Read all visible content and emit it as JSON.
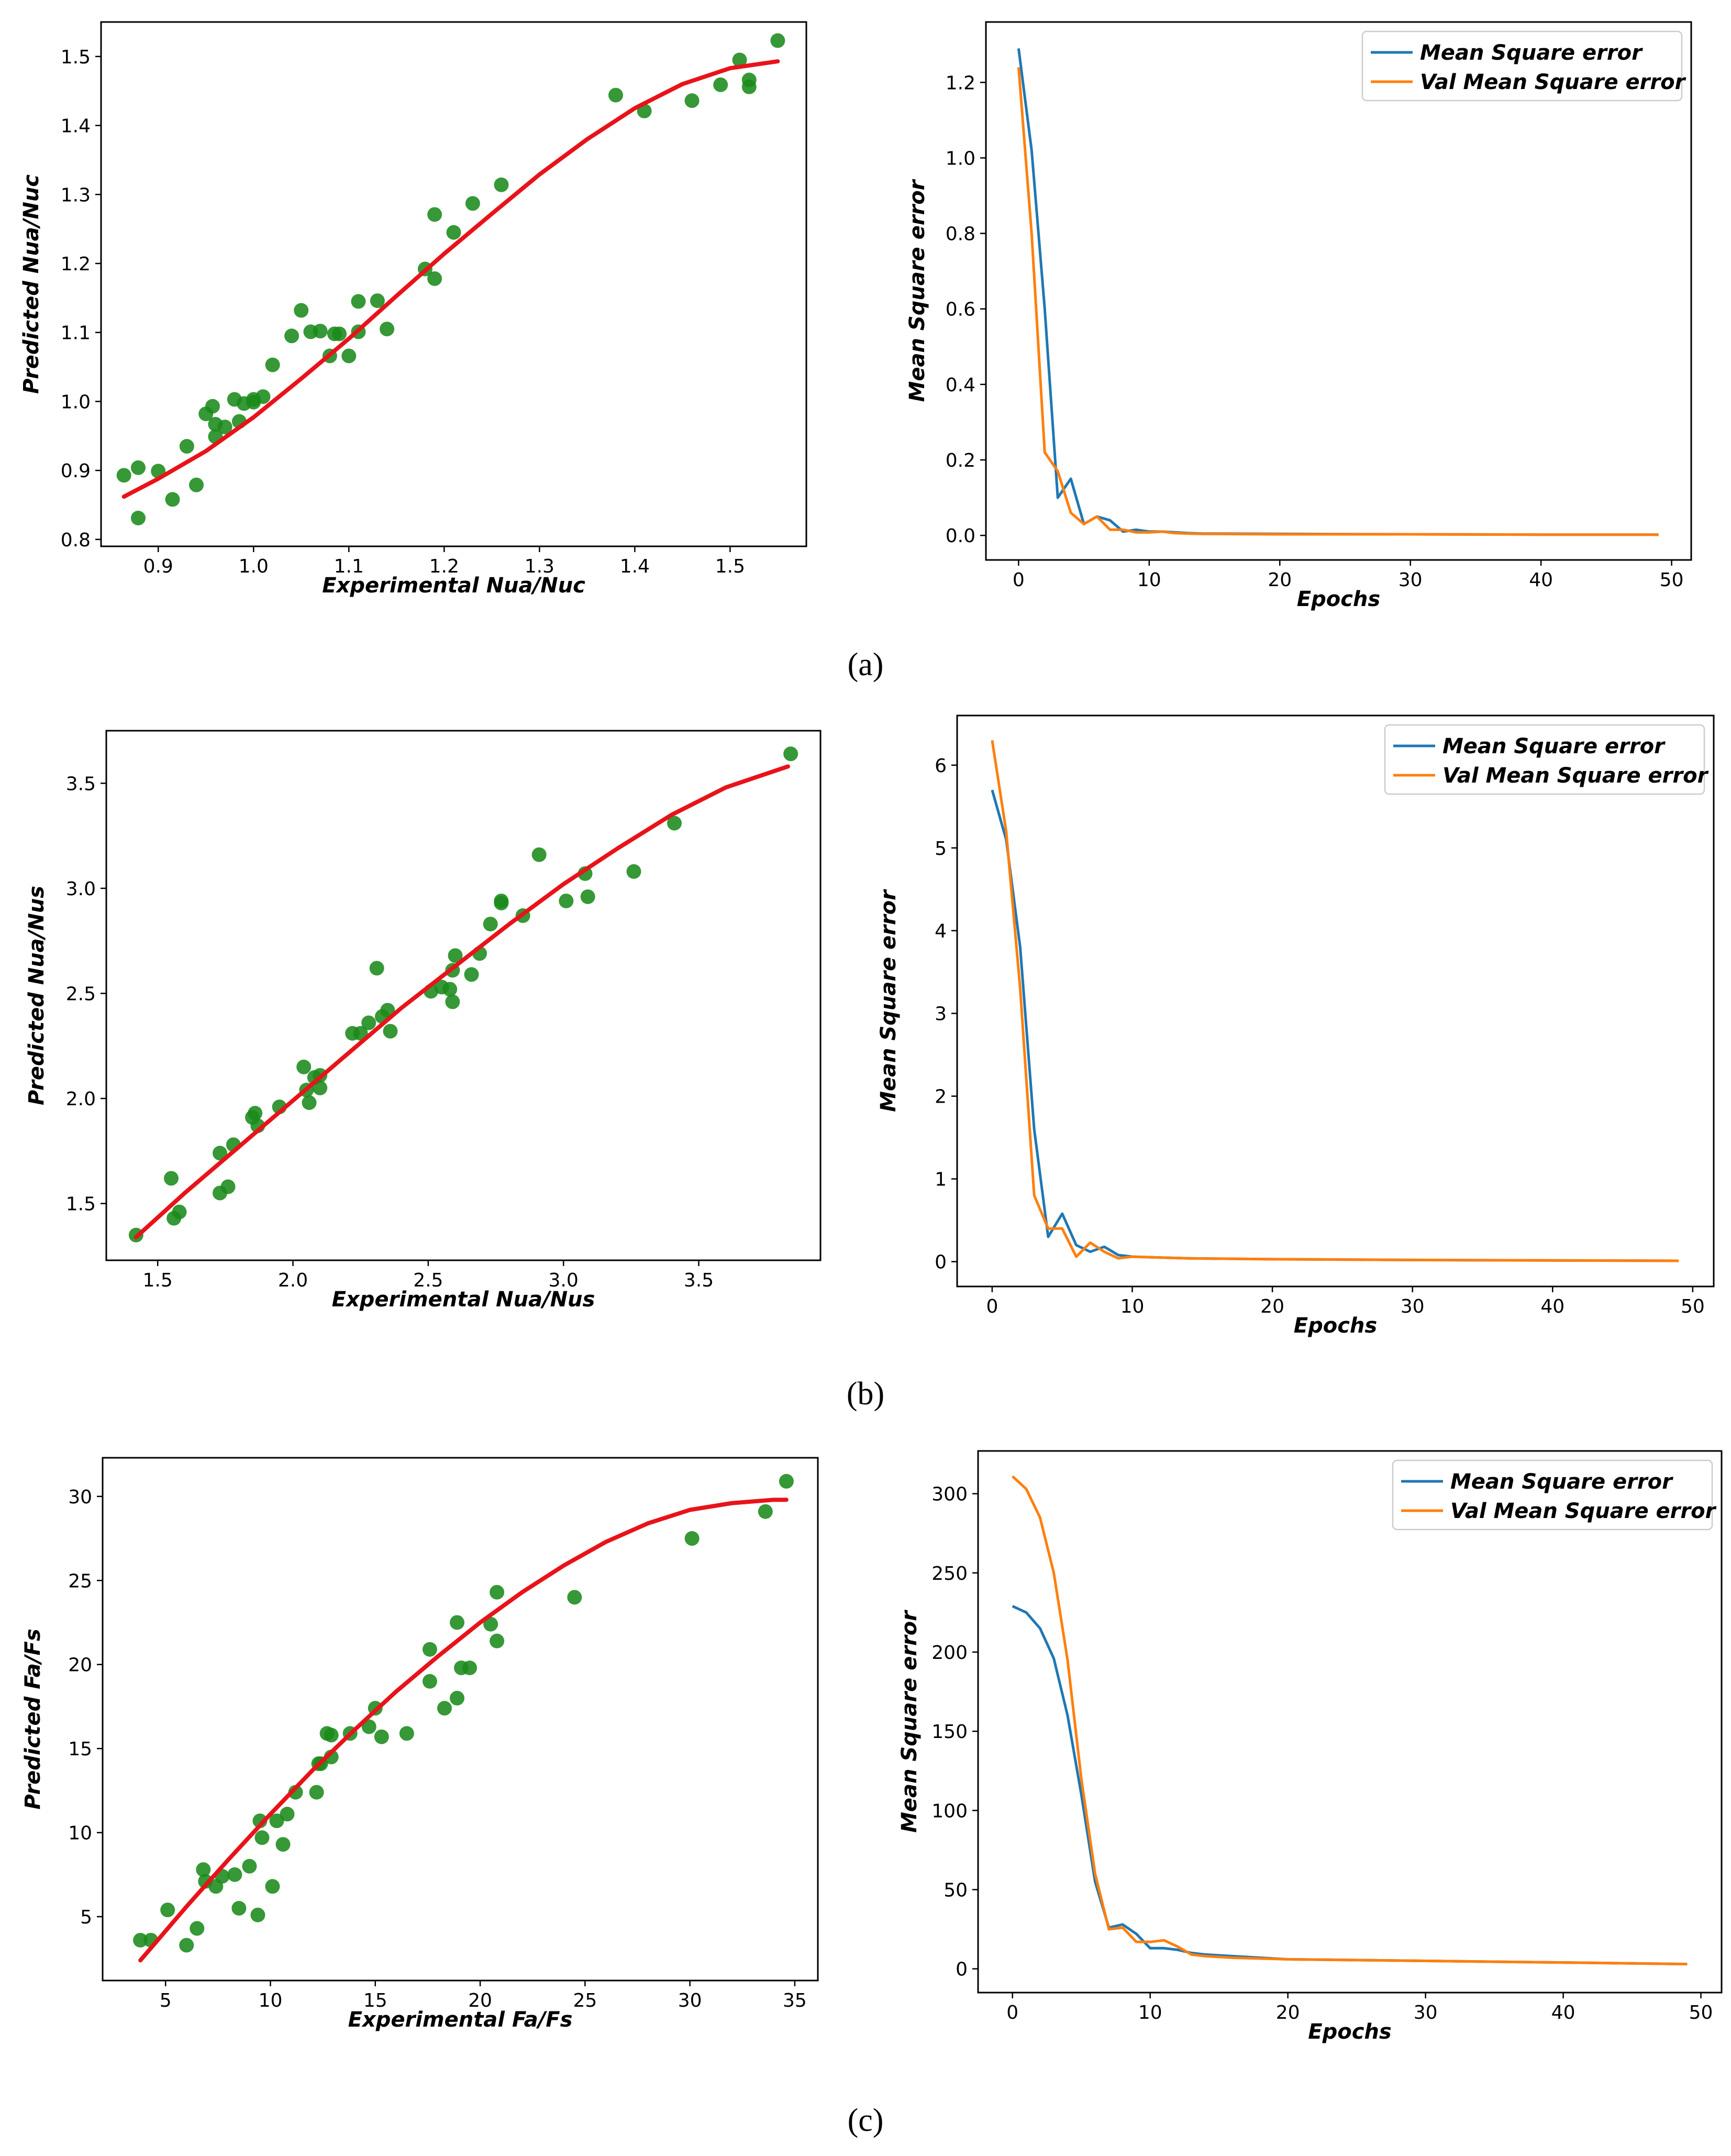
{
  "panel_labels": [
    "(a)",
    "(b)",
    "(c)"
  ],
  "chart_data": [
    {
      "id": "a-scatter",
      "type": "scatter",
      "title": "",
      "xlabel": "Experimental Nua/Nuc",
      "ylabel": "Predicted Nua/Nuc",
      "xlim": [
        0.84,
        1.58
      ],
      "ylim": [
        0.79,
        1.55
      ],
      "xticks": [
        0.9,
        1.0,
        1.1,
        1.2,
        1.3,
        1.4,
        1.5
      ],
      "xtick_labels": [
        "0.9",
        "1.0",
        "1.1",
        "1.2",
        "1.3",
        "1.4",
        "1.5"
      ],
      "yticks": [
        0.8,
        0.9,
        1.0,
        1.1,
        1.2,
        1.3,
        1.4,
        1.5
      ],
      "ytick_labels": [
        "0.8",
        "0.9",
        "1.0",
        "1.1",
        "1.2",
        "1.3",
        "1.4",
        "1.5"
      ],
      "points": {
        "x": [
          0.864,
          0.879,
          0.879,
          0.9,
          0.915,
          0.93,
          0.94,
          0.95,
          0.957,
          0.96,
          0.96,
          0.97,
          0.98,
          0.985,
          0.99,
          1.0,
          1.0,
          1.01,
          1.02,
          1.04,
          1.05,
          1.06,
          1.07,
          1.08,
          1.085,
          1.09,
          1.1,
          1.11,
          1.11,
          1.13,
          1.14,
          1.18,
          1.19,
          1.19,
          1.21,
          1.23,
          1.26,
          1.38,
          1.41,
          1.46,
          1.49,
          1.51,
          1.52,
          1.52,
          1.55
        ],
        "y": [
          0.893,
          0.904,
          0.831,
          0.899,
          0.858,
          0.935,
          0.879,
          0.982,
          0.993,
          0.949,
          0.967,
          0.963,
          1.003,
          0.971,
          0.997,
          0.999,
          1.003,
          1.007,
          1.053,
          1.095,
          1.132,
          1.101,
          1.102,
          1.066,
          1.098,
          1.098,
          1.066,
          1.101,
          1.145,
          1.146,
          1.105,
          1.192,
          1.178,
          1.271,
          1.245,
          1.287,
          1.314,
          1.444,
          1.421,
          1.436,
          1.459,
          1.495,
          1.466,
          1.456,
          1.523
        ],
        "color": "#1a8a1a"
      },
      "fit": {
        "x": [
          0.864,
          0.9,
          0.95,
          1.0,
          1.05,
          1.1,
          1.15,
          1.2,
          1.25,
          1.3,
          1.35,
          1.4,
          1.45,
          1.5,
          1.55
        ],
        "y": [
          0.862,
          0.888,
          0.928,
          0.977,
          1.033,
          1.091,
          1.153,
          1.214,
          1.272,
          1.329,
          1.38,
          1.425,
          1.46,
          1.483,
          1.493
        ],
        "color": "#e8131a"
      }
    },
    {
      "id": "a-loss",
      "type": "line",
      "title": "",
      "xlabel": "Epochs",
      "ylabel": "Mean Square error",
      "xlim": [
        -2.5,
        51.5
      ],
      "ylim": [
        -0.065,
        1.36
      ],
      "xticks": [
        0,
        10,
        20,
        30,
        40,
        50
      ],
      "xtick_labels": [
        "0",
        "10",
        "20",
        "30",
        "40",
        "50"
      ],
      "yticks": [
        0.0,
        0.2,
        0.4,
        0.6,
        0.8,
        1.0,
        1.2
      ],
      "ytick_labels": [
        "0.0",
        "0.2",
        "0.4",
        "0.6",
        "0.8",
        "1.0",
        "1.2"
      ],
      "legend_position": "top-right",
      "series": [
        {
          "name": "Mean Square error",
          "color": "#1f77b4",
          "x": [
            0,
            1,
            2,
            3,
            4,
            5,
            6,
            7,
            8,
            9,
            10,
            11,
            12,
            13,
            14,
            20,
            30,
            40,
            49
          ],
          "y": [
            1.29,
            1.02,
            0.6,
            0.1,
            0.15,
            0.03,
            0.05,
            0.04,
            0.01,
            0.015,
            0.01,
            0.01,
            0.008,
            0.006,
            0.005,
            0.004,
            0.003,
            0.002,
            0.002
          ]
        },
        {
          "name": "Val Mean Square error",
          "color": "#ff7f0e",
          "x": [
            0,
            1,
            2,
            3,
            4,
            5,
            6,
            7,
            8,
            9,
            10,
            11,
            12,
            13,
            14,
            20,
            30,
            40,
            49
          ],
          "y": [
            1.24,
            0.8,
            0.22,
            0.17,
            0.06,
            0.03,
            0.05,
            0.015,
            0.015,
            0.008,
            0.008,
            0.01,
            0.006,
            0.005,
            0.004,
            0.003,
            0.003,
            0.002,
            0.002
          ]
        }
      ]
    },
    {
      "id": "b-scatter",
      "type": "scatter",
      "title": "",
      "xlabel": "Experimental Nua/Nus",
      "ylabel": "Predicted Nua/Nus",
      "xlim": [
        1.31,
        3.95
      ],
      "ylim": [
        1.23,
        3.75
      ],
      "xticks": [
        1.5,
        2.0,
        2.5,
        3.0,
        3.5
      ],
      "xtick_labels": [
        "1.5",
        "2.0",
        "2.5",
        "3.0",
        "3.5"
      ],
      "yticks": [
        1.5,
        2.0,
        2.5,
        3.0,
        3.5
      ],
      "ytick_labels": [
        "1.5",
        "2.0",
        "2.5",
        "3.0",
        "3.5"
      ],
      "points": {
        "x": [
          1.42,
          1.55,
          1.56,
          1.58,
          1.73,
          1.73,
          1.76,
          1.78,
          1.85,
          1.86,
          1.87,
          1.95,
          2.04,
          2.05,
          2.06,
          2.08,
          2.1,
          2.1,
          2.22,
          2.25,
          2.28,
          2.31,
          2.33,
          2.35,
          2.36,
          2.51,
          2.55,
          2.58,
          2.59,
          2.59,
          2.6,
          2.66,
          2.69,
          2.73,
          2.77,
          2.77,
          2.85,
          2.91,
          3.01,
          3.08,
          3.09,
          3.26,
          3.41,
          3.84
        ],
        "y": [
          1.35,
          1.62,
          1.43,
          1.46,
          1.74,
          1.55,
          1.58,
          1.78,
          1.91,
          1.93,
          1.87,
          1.96,
          2.15,
          2.04,
          1.98,
          2.1,
          2.05,
          2.11,
          2.31,
          2.31,
          2.36,
          2.62,
          2.39,
          2.42,
          2.32,
          2.51,
          2.53,
          2.52,
          2.46,
          2.61,
          2.68,
          2.59,
          2.69,
          2.83,
          2.93,
          2.94,
          2.87,
          3.16,
          2.94,
          3.07,
          2.96,
          3.08,
          3.31,
          3.64
        ],
        "color": "#1a8a1a"
      },
      "fit": {
        "x": [
          1.42,
          1.6,
          1.8,
          2.0,
          2.2,
          2.4,
          2.6,
          2.8,
          3.0,
          3.2,
          3.4,
          3.6,
          3.83
        ],
        "y": [
          1.34,
          1.55,
          1.77,
          1.99,
          2.21,
          2.43,
          2.63,
          2.83,
          3.02,
          3.19,
          3.35,
          3.48,
          3.58
        ],
        "color": "#e8131a"
      }
    },
    {
      "id": "b-loss",
      "type": "line",
      "title": "",
      "xlabel": "Epochs",
      "ylabel": "Mean Square error",
      "xlim": [
        -2.5,
        51.5
      ],
      "ylim": [
        -0.3,
        6.6
      ],
      "xticks": [
        0,
        10,
        20,
        30,
        40,
        50
      ],
      "xtick_labels": [
        "0",
        "10",
        "20",
        "30",
        "40",
        "50"
      ],
      "yticks": [
        0,
        1,
        2,
        3,
        4,
        5,
        6
      ],
      "ytick_labels": [
        "0",
        "1",
        "2",
        "3",
        "4",
        "5",
        "6"
      ],
      "legend_position": "top-right",
      "series": [
        {
          "name": "Mean Square error",
          "color": "#1f77b4",
          "x": [
            0,
            1,
            2,
            3,
            4,
            5,
            6,
            7,
            8,
            9,
            10,
            12,
            14,
            20,
            30,
            40,
            49
          ],
          "y": [
            5.7,
            5.1,
            3.8,
            1.6,
            0.3,
            0.58,
            0.2,
            0.12,
            0.18,
            0.08,
            0.06,
            0.05,
            0.04,
            0.03,
            0.02,
            0.015,
            0.01
          ]
        },
        {
          "name": "Val Mean Square error",
          "color": "#ff7f0e",
          "x": [
            0,
            1,
            2,
            3,
            4,
            5,
            6,
            7,
            8,
            9,
            10,
            12,
            14,
            20,
            30,
            40,
            49
          ],
          "y": [
            6.3,
            5.2,
            3.3,
            0.8,
            0.4,
            0.4,
            0.06,
            0.23,
            0.12,
            0.04,
            0.06,
            0.05,
            0.04,
            0.03,
            0.02,
            0.015,
            0.01
          ]
        }
      ]
    },
    {
      "id": "c-scatter",
      "type": "scatter",
      "title": "",
      "xlabel": "Experimental Fa/Fs",
      "ylabel": "Predicted Fa/Fs",
      "xlim": [
        2.0,
        36.1
      ],
      "ylim": [
        1.2,
        32.3
      ],
      "xticks": [
        5,
        10,
        15,
        20,
        25,
        30,
        35
      ],
      "xtick_labels": [
        "5",
        "10",
        "15",
        "20",
        "25",
        "30",
        "35"
      ],
      "yticks": [
        5,
        10,
        15,
        20,
        25,
        30
      ],
      "ytick_labels": [
        "5",
        "10",
        "15",
        "20",
        "25",
        "30"
      ],
      "points": {
        "x": [
          3.8,
          4.3,
          5.1,
          6.0,
          6.5,
          6.8,
          6.9,
          7.4,
          7.7,
          8.3,
          8.5,
          9.0,
          9.4,
          9.5,
          9.6,
          10.1,
          10.3,
          10.6,
          10.8,
          11.2,
          12.2,
          12.3,
          12.4,
          12.7,
          12.9,
          12.9,
          13.8,
          14.7,
          15.0,
          15.3,
          16.5,
          17.6,
          17.6,
          18.3,
          18.9,
          18.9,
          19.1,
          19.5,
          20.5,
          20.8,
          20.8,
          24.5,
          30.1,
          33.6,
          34.6
        ],
        "y": [
          3.6,
          3.6,
          5.4,
          3.3,
          4.3,
          7.8,
          7.1,
          6.8,
          7.4,
          7.5,
          5.5,
          8.0,
          5.1,
          10.7,
          9.7,
          6.8,
          10.7,
          9.3,
          11.1,
          12.4,
          12.4,
          14.1,
          14.1,
          15.9,
          15.8,
          14.5,
          15.9,
          16.3,
          17.4,
          15.7,
          15.9,
          20.9,
          19.0,
          17.4,
          22.5,
          18.0,
          19.8,
          19.8,
          22.4,
          24.3,
          21.4,
          24.0,
          27.5,
          29.1,
          30.9
        ],
        "color": "#1a8a1a"
      },
      "fit": {
        "x": [
          3.8,
          6,
          8,
          10,
          12,
          14,
          16,
          18,
          20,
          22,
          24,
          26,
          28,
          30,
          32,
          34,
          34.6
        ],
        "y": [
          2.4,
          5.6,
          8.4,
          11.1,
          13.7,
          16.1,
          18.4,
          20.5,
          22.5,
          24.3,
          25.9,
          27.3,
          28.4,
          29.2,
          29.6,
          29.8,
          29.8
        ],
        "color": "#e8131a"
      }
    },
    {
      "id": "c-loss",
      "type": "line",
      "title": "",
      "xlabel": "Epochs",
      "ylabel": "Mean Square error",
      "xlim": [
        -2.5,
        51.5
      ],
      "ylim": [
        -15,
        327
      ],
      "xticks": [
        0,
        10,
        20,
        30,
        40,
        50
      ],
      "xtick_labels": [
        "0",
        "10",
        "20",
        "30",
        "40",
        "50"
      ],
      "yticks": [
        0,
        50,
        100,
        150,
        200,
        250,
        300
      ],
      "ytick_labels": [
        "0",
        "50",
        "100",
        "150",
        "200",
        "250",
        "300"
      ],
      "legend_position": "top-right",
      "series": [
        {
          "name": "Mean Square error",
          "color": "#1f77b4",
          "x": [
            0,
            1,
            2,
            3,
            4,
            5,
            6,
            7,
            8,
            9,
            10,
            11,
            12,
            13,
            14,
            16,
            20,
            30,
            40,
            49
          ],
          "y": [
            229,
            225,
            215,
            196,
            160,
            110,
            55,
            26,
            28,
            22,
            13,
            13,
            12,
            10,
            9,
            8,
            6,
            5,
            4,
            3
          ]
        },
        {
          "name": "Val Mean Square error",
          "color": "#ff7f0e",
          "x": [
            0,
            1,
            2,
            3,
            4,
            5,
            6,
            7,
            8,
            9,
            10,
            11,
            12,
            13,
            14,
            16,
            20,
            30,
            40,
            49
          ],
          "y": [
            311,
            303,
            285,
            250,
            195,
            120,
            60,
            25,
            26,
            17,
            17,
            18,
            14,
            9,
            8,
            7,
            6,
            5,
            4,
            3
          ]
        }
      ]
    }
  ]
}
